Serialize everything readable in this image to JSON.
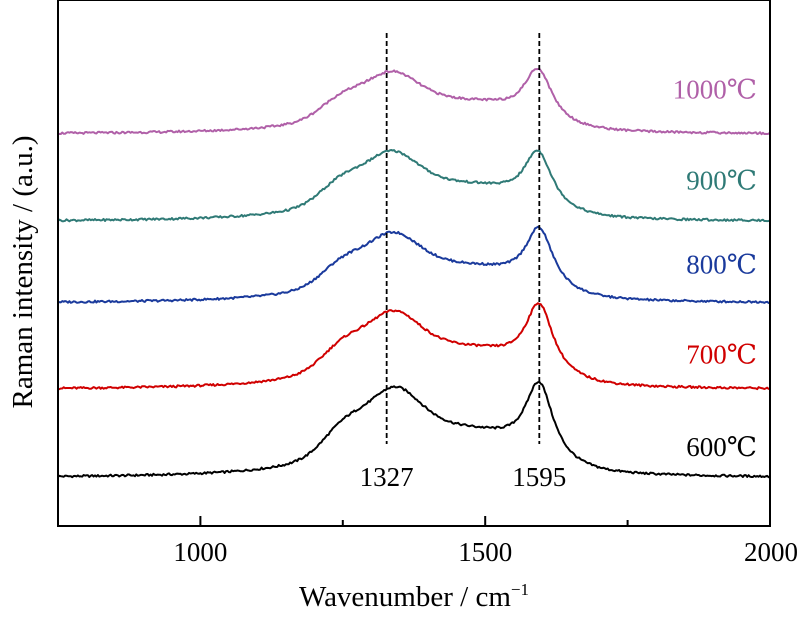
{
  "chart_data": {
    "type": "line",
    "xlabel": "Wavenumber / cm",
    "xlabel_superscript": "−1",
    "ylabel": "Raman intensity / (a.u.)",
    "xlim": [
      750,
      2000
    ],
    "xticks_major": [
      1000,
      1500,
      2000
    ],
    "xticks_minor": [
      750,
      1250,
      1750
    ],
    "y_ticks_shown": false,
    "grid": false,
    "peak_markers": [
      {
        "x": 1327,
        "label": "1327"
      },
      {
        "x": 1595,
        "label": "1595"
      }
    ],
    "series": [
      {
        "name": "600℃",
        "color": "#000000",
        "baseline": 0.0,
        "d_height": 1.15,
        "g_height": 1.1,
        "d_pos": 1340,
        "g_pos": 1595
      },
      {
        "name": "700℃",
        "color": "#d00000",
        "baseline": 0.92,
        "d_height": 1.0,
        "g_height": 1.0,
        "d_pos": 1338,
        "g_pos": 1595
      },
      {
        "name": "800℃",
        "color": "#1a3a9c",
        "baseline": 1.82,
        "d_height": 0.9,
        "g_height": 0.87,
        "d_pos": 1337,
        "g_pos": 1595
      },
      {
        "name": "900℃",
        "color": "#2f7a76",
        "baseline": 2.67,
        "d_height": 0.9,
        "g_height": 0.8,
        "d_pos": 1335,
        "g_pos": 1593
      },
      {
        "name": "1000℃",
        "color": "#b060a8",
        "baseline": 3.58,
        "d_height": 0.8,
        "g_height": 0.75,
        "d_pos": 1335,
        "g_pos": 1593
      }
    ]
  }
}
